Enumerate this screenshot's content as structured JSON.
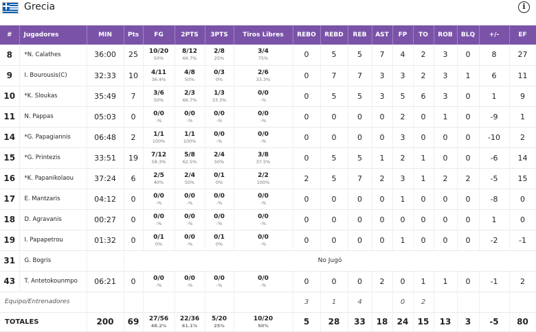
{
  "team": {
    "name": "Grecia"
  },
  "header": {
    "info_icon": "i"
  },
  "columns": [
    "#",
    "Jugadores",
    "MIN",
    "Pts",
    "FG",
    "2PTS",
    "3PTS",
    "Tiros Libres",
    "REBO",
    "REBD",
    "REB",
    "AST",
    "FP",
    "TO",
    "ROB",
    "BLQ",
    "+/-",
    "EF"
  ],
  "players": [
    {
      "num": "8",
      "name": "*N. Calathes",
      "min": "36:00",
      "pts": "25",
      "fg": "10/20",
      "fg_pct": "50%",
      "p2": "8/12",
      "p2_pct": "66.7%",
      "p3": "2/8",
      "p3_pct": "25%",
      "ft": "3/4",
      "ft_pct": "75%",
      "rebo": "0",
      "rebd": "5",
      "reb": "5",
      "ast": "7",
      "fp": "4",
      "to": "2",
      "rob": "3",
      "blq": "0",
      "pm": "8",
      "ef": "27"
    },
    {
      "num": "9",
      "name": "I. Bourousis(C)",
      "min": "32:33",
      "pts": "10",
      "fg": "4/11",
      "fg_pct": "36.4%",
      "p2": "4/8",
      "p2_pct": "50%",
      "p3": "0/3",
      "p3_pct": "0%",
      "ft": "2/6",
      "ft_pct": "33.3%",
      "rebo": "0",
      "rebd": "7",
      "reb": "7",
      "ast": "3",
      "fp": "3",
      "to": "2",
      "rob": "3",
      "blq": "1",
      "pm": "6",
      "ef": "11"
    },
    {
      "num": "10",
      "name": "*K. Sloukas",
      "min": "35:49",
      "pts": "7",
      "fg": "3/6",
      "fg_pct": "50%",
      "p2": "2/3",
      "p2_pct": "66.7%",
      "p3": "1/3",
      "p3_pct": "33.3%",
      "ft": "0/0",
      "ft_pct": "-%",
      "rebo": "0",
      "rebd": "5",
      "reb": "5",
      "ast": "3",
      "fp": "5",
      "to": "6",
      "rob": "3",
      "blq": "0",
      "pm": "1",
      "ef": "9"
    },
    {
      "num": "11",
      "name": "N. Pappas",
      "min": "05:03",
      "pts": "0",
      "fg": "0/0",
      "fg_pct": "-%",
      "p2": "0/0",
      "p2_pct": "-%",
      "p3": "0/0",
      "p3_pct": "-%",
      "ft": "0/0",
      "ft_pct": "-%",
      "rebo": "0",
      "rebd": "0",
      "reb": "0",
      "ast": "0",
      "fp": "2",
      "to": "0",
      "rob": "1",
      "blq": "0",
      "pm": "-9",
      "ef": "1"
    },
    {
      "num": "14",
      "name": "*G. Papagiannis",
      "min": "06:48",
      "pts": "2",
      "fg": "1/1",
      "fg_pct": "100%",
      "p2": "1/1",
      "p2_pct": "100%",
      "p3": "0/0",
      "p3_pct": "-%",
      "ft": "0/0",
      "ft_pct": "-%",
      "rebo": "0",
      "rebd": "0",
      "reb": "0",
      "ast": "0",
      "fp": "3",
      "to": "0",
      "rob": "0",
      "blq": "0",
      "pm": "-10",
      "ef": "2"
    },
    {
      "num": "15",
      "name": "*G. Printezis",
      "min": "33:51",
      "pts": "19",
      "fg": "7/12",
      "fg_pct": "58.3%",
      "p2": "5/8",
      "p2_pct": "62.5%",
      "p3": "2/4",
      "p3_pct": "50%",
      "ft": "3/8",
      "ft_pct": "37.5%",
      "rebo": "0",
      "rebd": "5",
      "reb": "5",
      "ast": "1",
      "fp": "2",
      "to": "1",
      "rob": "0",
      "blq": "0",
      "pm": "-6",
      "ef": "14"
    },
    {
      "num": "16",
      "name": "*K. Papanikolaou",
      "min": "37:24",
      "pts": "6",
      "fg": "2/5",
      "fg_pct": "40%",
      "p2": "2/4",
      "p2_pct": "50%",
      "p3": "0/1",
      "p3_pct": "0%",
      "ft": "2/2",
      "ft_pct": "100%",
      "rebo": "2",
      "rebd": "5",
      "reb": "7",
      "ast": "2",
      "fp": "3",
      "to": "1",
      "rob": "2",
      "blq": "2",
      "pm": "-5",
      "ef": "15"
    },
    {
      "num": "17",
      "name": "E. Mantzaris",
      "min": "04:12",
      "pts": "0",
      "fg": "0/0",
      "fg_pct": "-%",
      "p2": "0/0",
      "p2_pct": "-%",
      "p3": "0/0",
      "p3_pct": "-%",
      "ft": "0/0",
      "ft_pct": "-%",
      "rebo": "0",
      "rebd": "0",
      "reb": "0",
      "ast": "0",
      "fp": "1",
      "to": "0",
      "rob": "0",
      "blq": "0",
      "pm": "-8",
      "ef": "0"
    },
    {
      "num": "18",
      "name": "D. Agravanis",
      "min": "00:27",
      "pts": "0",
      "fg": "0/0",
      "fg_pct": "-%",
      "p2": "0/0",
      "p2_pct": "-%",
      "p3": "0/0",
      "p3_pct": "-%",
      "ft": "0/0",
      "ft_pct": "-%",
      "rebo": "0",
      "rebd": "0",
      "reb": "0",
      "ast": "0",
      "fp": "0",
      "to": "0",
      "rob": "0",
      "blq": "0",
      "pm": "1",
      "ef": "0"
    },
    {
      "num": "19",
      "name": "I. Papapetrou",
      "min": "01:32",
      "pts": "0",
      "fg": "0/1",
      "fg_pct": "0%",
      "p2": "0/0",
      "p2_pct": "-%",
      "p3": "0/1",
      "p3_pct": "0%",
      "ft": "0/0",
      "ft_pct": "-%",
      "rebo": "0",
      "rebd": "0",
      "reb": "0",
      "ast": "0",
      "fp": "1",
      "to": "0",
      "rob": "0",
      "blq": "0",
      "pm": "-2",
      "ef": "-1"
    },
    {
      "num": "31",
      "name": "G. Bogris",
      "dnp": "No Jugó"
    },
    {
      "num": "43",
      "name": "T. Antetokounmpo",
      "min": "06:21",
      "pts": "0",
      "fg": "0/0",
      "fg_pct": "-%",
      "p2": "0/0",
      "p2_pct": "-%",
      "p3": "0/0",
      "p3_pct": "-%",
      "ft": "0/0",
      "ft_pct": "-%",
      "rebo": "0",
      "rebd": "0",
      "reb": "0",
      "ast": "2",
      "fp": "0",
      "to": "1",
      "rob": "1",
      "blq": "0",
      "pm": "-1",
      "ef": "2"
    }
  ],
  "team_row": {
    "label": "Equipo/Entrenadores",
    "rebo": "3",
    "rebd": "1",
    "reb": "4",
    "ast": "",
    "fp": "0",
    "to": "2",
    "rob": "",
    "blq": "",
    "pm": "",
    "ef": ""
  },
  "totals": {
    "label": "TOTALES",
    "min": "200",
    "pts": "69",
    "fg": "27/56",
    "fg_pct": "48.2%",
    "p2": "22/36",
    "p2_pct": "61.1%",
    "p3": "5/20",
    "p3_pct": "25%",
    "ft": "10/20",
    "ft_pct": "50%",
    "rebo": "5",
    "rebd": "28",
    "reb": "33",
    "ast": "18",
    "fp": "24",
    "to": "15",
    "rob": "13",
    "blq": "3",
    "pm": "-5",
    "ef": "80"
  }
}
